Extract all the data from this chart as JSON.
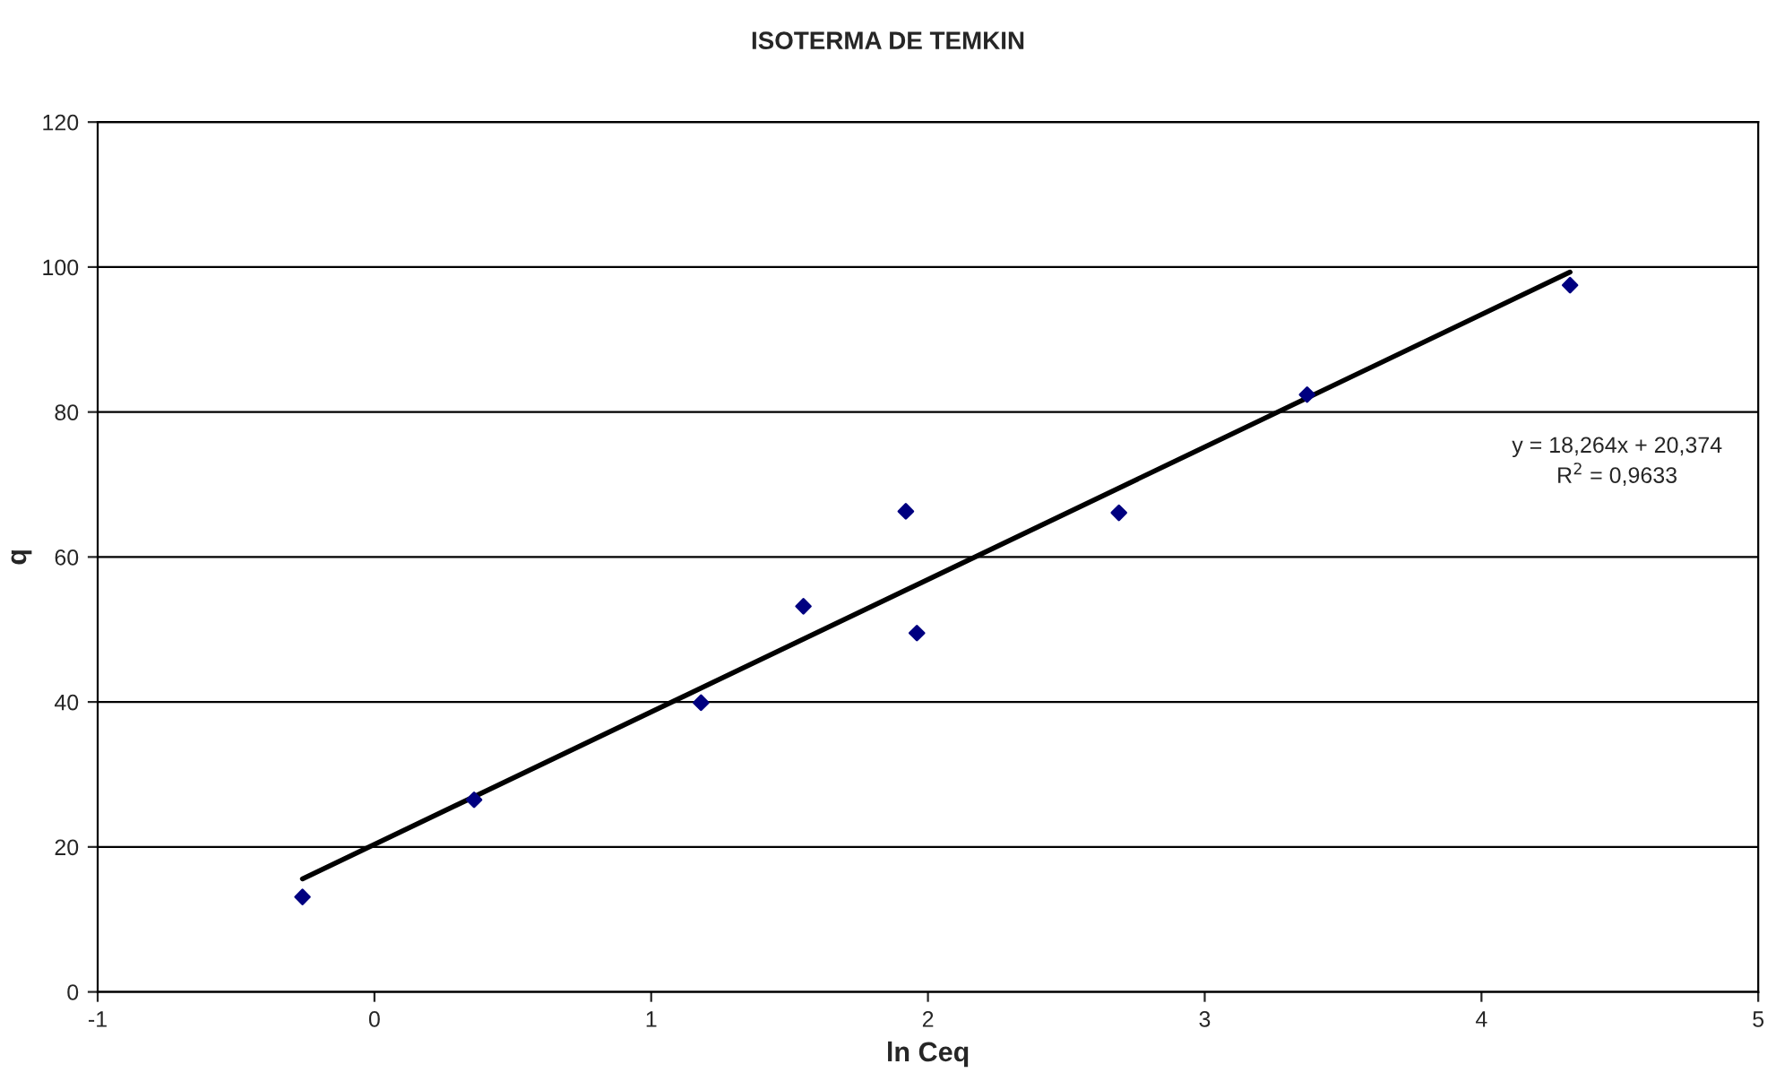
{
  "chart_data": {
    "type": "scatter",
    "title": "ISOTERMA DE TEMKIN",
    "xlabel": "ln Ceq",
    "ylabel": "q",
    "xlim": [
      -1,
      5
    ],
    "xticks": [
      -1,
      0,
      1,
      2,
      3,
      4,
      5
    ],
    "ylim": [
      0,
      120
    ],
    "yticks": [
      0,
      20,
      40,
      60,
      80,
      100,
      120
    ],
    "grid": "y",
    "series": [
      {
        "marker": "diamond",
        "color": "#000080",
        "x": [
          -0.26,
          0.36,
          1.18,
          1.55,
          1.92,
          1.96,
          2.69,
          3.37,
          4.32
        ],
        "values": [
          13.1,
          26.5,
          39.9,
          53.2,
          66.3,
          49.5,
          66.1,
          82.4,
          97.5
        ]
      },
      {
        "type": "line",
        "marker": "none",
        "color": "#000000",
        "x": [
          -0.26,
          4.32
        ],
        "values": [
          15.6,
          99.3
        ]
      }
    ],
    "annotations": [
      "y = 18,264x + 20,374",
      "R$^{2}$ = 0,9633"
    ]
  }
}
